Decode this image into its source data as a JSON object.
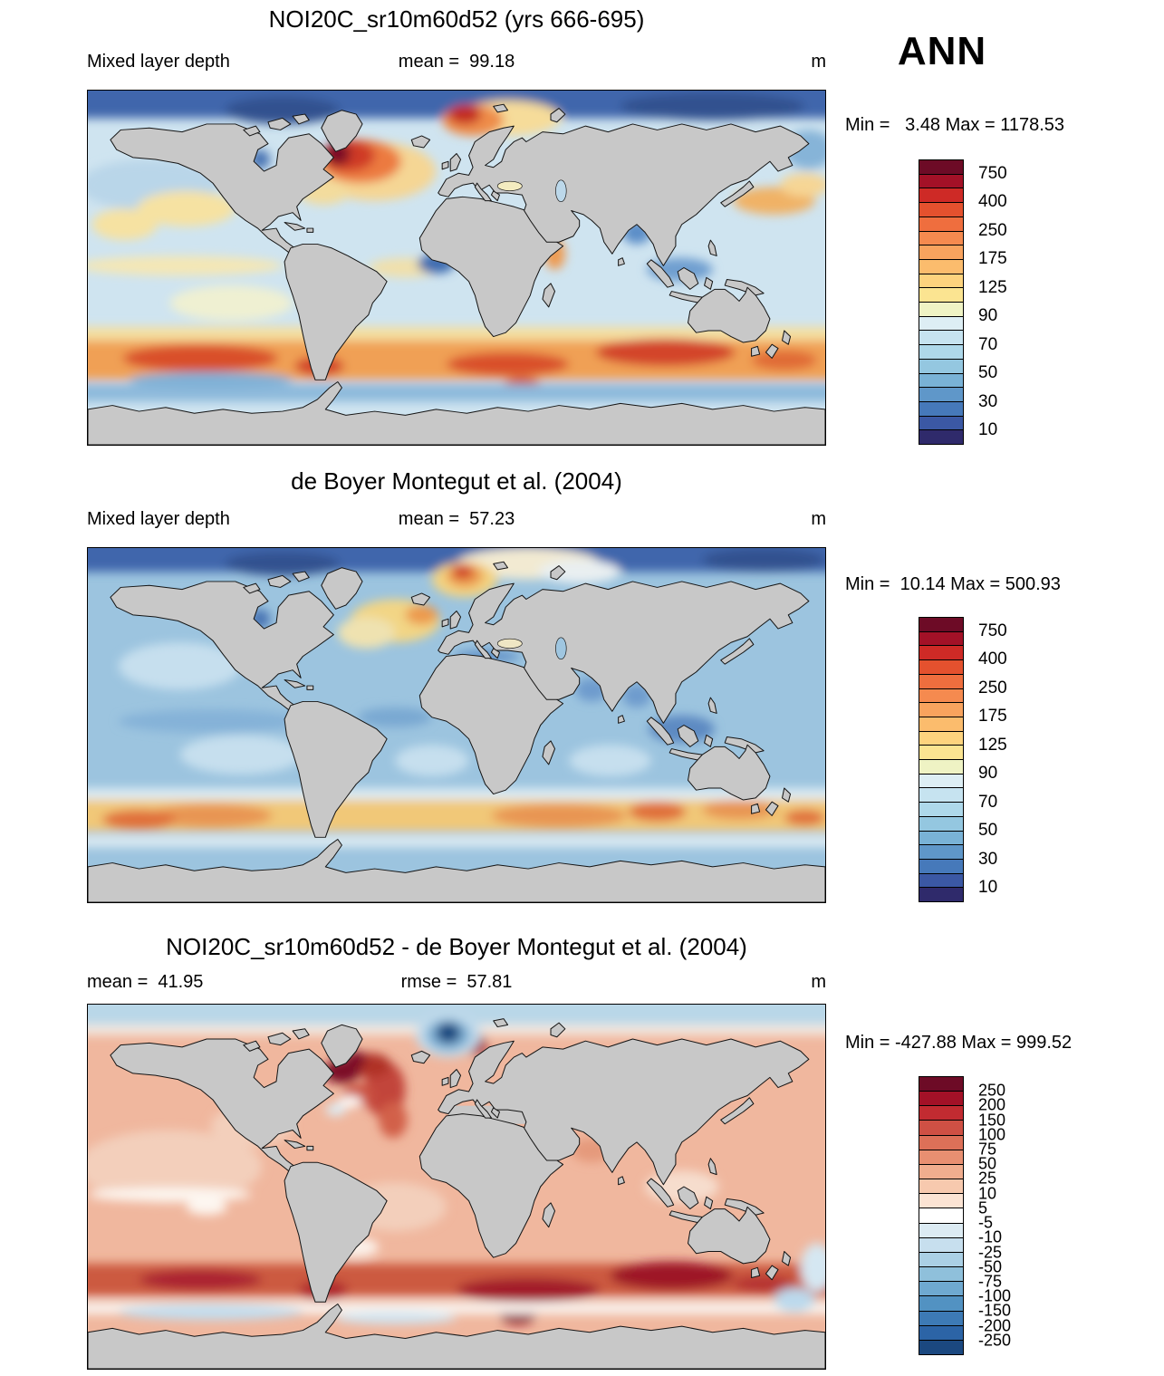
{
  "header": {
    "season": "ANN"
  },
  "panels": [
    {
      "title": "NOI20C_sr10m60d52 (yrs 666-695)",
      "left_stat": "Mixed layer depth",
      "center_stat": "mean =  99.18",
      "units": "m",
      "minmax": "Min =   3.48 Max = 1178.53",
      "colorbar": {
        "label_every": 2,
        "labels": [
          "750",
          "400",
          "250",
          "175",
          "125",
          "90",
          "70",
          "50",
          "30",
          "10"
        ],
        "colors": [
          "#6d0b26",
          "#a31127",
          "#ce2a26",
          "#e4512e",
          "#ef6e3e",
          "#f58a4f",
          "#f8a35e",
          "#fbbc6d",
          "#fdd37e",
          "#fbe491",
          "#eff3c4",
          "#ddeef4",
          "#c6e3f0",
          "#aed8ea",
          "#94c7e0",
          "#79b2d6",
          "#5f97c9",
          "#4679ba",
          "#3b58a4",
          "#2f2a6b"
        ]
      }
    },
    {
      "title": "de Boyer Montegut et al. (2004)",
      "left_stat": "Mixed layer depth",
      "center_stat": "mean =  57.23",
      "units": "m",
      "minmax": "Min =  10.14 Max = 500.93",
      "colorbar": {
        "label_every": 2,
        "labels": [
          "750",
          "400",
          "250",
          "175",
          "125",
          "90",
          "70",
          "50",
          "30",
          "10"
        ],
        "colors": [
          "#6d0b26",
          "#a31127",
          "#ce2a26",
          "#e4512e",
          "#ef6e3e",
          "#f58a4f",
          "#f8a35e",
          "#fbbc6d",
          "#fdd37e",
          "#fbe491",
          "#eff3c4",
          "#ddeef4",
          "#c6e3f0",
          "#aed8ea",
          "#94c7e0",
          "#79b2d6",
          "#5f97c9",
          "#4679ba",
          "#3b58a4",
          "#2f2a6b"
        ]
      }
    },
    {
      "title": "NOI20C_sr10m60d52 - de Boyer Montegut et al. (2004)",
      "left_stat": "mean =  41.95",
      "center_stat": "rmse =  57.81",
      "units": "m",
      "minmax": "Min = -427.88 Max = 999.52",
      "colorbar": {
        "label_every": 1,
        "labels": [
          "250",
          "200",
          "150",
          "100",
          "75",
          "50",
          "25",
          "10",
          "5",
          "-5",
          "-10",
          "-25",
          "-50",
          "-75",
          "-100",
          "-150",
          "-200",
          "-250"
        ],
        "colors": [
          "#6d0b26",
          "#a31127",
          "#c22b31",
          "#cf5044",
          "#dd7058",
          "#e88f71",
          "#f0ad8e",
          "#f7c9ae",
          "#fbe3d3",
          "#ffffff",
          "#dcebf3",
          "#c7dfee",
          "#abd0e5",
          "#8fc0db",
          "#6fa9d0",
          "#5292c2",
          "#3d7ab5",
          "#2c64a6",
          "#1b4880"
        ]
      }
    }
  ],
  "chart_data": [
    {
      "type": "heatmap",
      "subtype": "global filled-contour map, equirectangular",
      "variable": "Mixed layer depth",
      "title": "NOI20C_sr10m60d52 (yrs 666-695)",
      "season": "ANN",
      "units": "m",
      "mean": 99.18,
      "min": 3.48,
      "max": 1178.53,
      "contour_levels": [
        10,
        20,
        30,
        40,
        50,
        60,
        70,
        80,
        90,
        100,
        125,
        150,
        175,
        200,
        250,
        300,
        400,
        500,
        750
      ],
      "labeled_levels": [
        10,
        30,
        50,
        70,
        90,
        125,
        175,
        250,
        400,
        750
      ],
      "legend_position": "right",
      "notes": "Deep maroon/red maximum in Labrador Sea and Nordic Seas; orange band 40-60S; dark blue Arctic; pale yellow subtropical gyres; land masked gray"
    },
    {
      "type": "heatmap",
      "subtype": "global filled-contour map, equirectangular",
      "variable": "Mixed layer depth",
      "title": "de Boyer Montegut et al. (2004)",
      "season": "ANN",
      "units": "m",
      "mean": 57.23,
      "min": 10.14,
      "max": 500.93,
      "contour_levels": [
        10,
        20,
        30,
        40,
        50,
        60,
        70,
        80,
        90,
        100,
        125,
        150,
        175,
        200,
        250,
        300,
        400,
        500,
        750
      ],
      "labeled_levels": [
        10,
        30,
        50,
        70,
        90,
        125,
        175,
        250,
        400,
        750
      ],
      "legend_position": "right",
      "notes": "Mostly blue ocean; orange-red spot in Norwegian Sea; yellow North Atlantic; yellow-orange band 40-55S"
    },
    {
      "type": "heatmap",
      "subtype": "global filled-contour difference map, equirectangular",
      "variable": "Mixed layer depth difference (model minus observations)",
      "title": "NOI20C_sr10m60d52 - de Boyer Montegut et al. (2004)",
      "season": "ANN",
      "units": "m",
      "mean": 41.95,
      "rmse": 57.81,
      "min": -427.88,
      "max": 999.52,
      "contour_levels": [
        -250,
        -200,
        -150,
        -100,
        -75,
        -50,
        -25,
        -10,
        -5,
        5,
        10,
        25,
        50,
        75,
        100,
        150,
        200,
        250
      ],
      "labeled_levels": [
        -250,
        -200,
        -150,
        -100,
        -75,
        -50,
        -25,
        -10,
        -5,
        5,
        10,
        25,
        50,
        75,
        100,
        150,
        200,
        250
      ],
      "legend_position": "right",
      "notes": "Broad positive (red) bias over most oceans; dark red band in Southern Ocean; maroon maxima Labrador Sea and east of Greenland; dark blue negative spot in Norwegian Sea; pale blue near Antarctic coast"
    }
  ]
}
